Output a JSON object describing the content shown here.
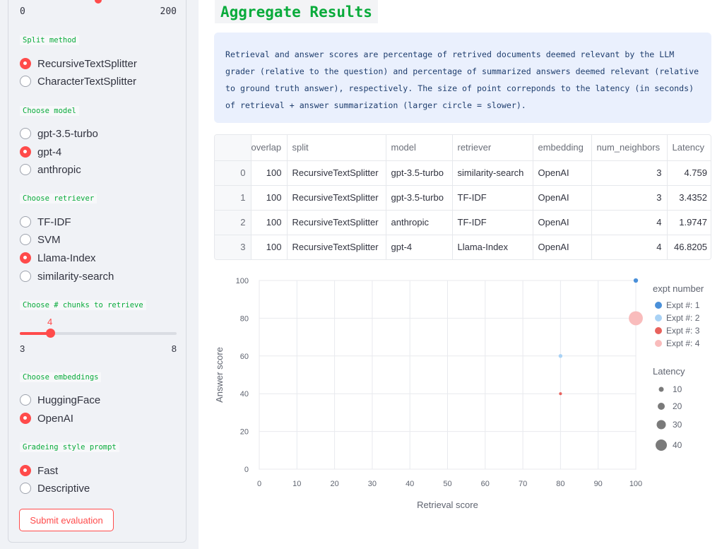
{
  "sidebar": {
    "top_range": {
      "min": "0",
      "max": "200"
    },
    "split_method": {
      "label": "Split method",
      "options": [
        {
          "label": "RecursiveTextSplitter",
          "selected": true
        },
        {
          "label": "CharacterTextSplitter",
          "selected": false
        }
      ]
    },
    "model": {
      "label": "Choose model",
      "options": [
        {
          "label": "gpt-3.5-turbo",
          "selected": false
        },
        {
          "label": "gpt-4",
          "selected": true
        },
        {
          "label": "anthropic",
          "selected": false
        }
      ]
    },
    "retriever": {
      "label": "Choose retriever",
      "options": [
        {
          "label": "TF-IDF",
          "selected": false
        },
        {
          "label": "SVM",
          "selected": false
        },
        {
          "label": "Llama-Index",
          "selected": true
        },
        {
          "label": "similarity-search",
          "selected": false
        }
      ]
    },
    "chunks": {
      "label": "Choose # chunks to retrieve",
      "value": "4",
      "min": "3",
      "max": "8"
    },
    "embeddings": {
      "label": "Choose embeddings",
      "options": [
        {
          "label": "HuggingFace",
          "selected": false
        },
        {
          "label": "OpenAI",
          "selected": true
        }
      ]
    },
    "grading": {
      "label": "Gradeing style prompt",
      "options": [
        {
          "label": "Fast",
          "selected": true
        },
        {
          "label": "Descriptive",
          "selected": false
        }
      ]
    },
    "submit_label": "Submit evaluation"
  },
  "main": {
    "title": "Aggregate Results",
    "info": "Retrieval and answer scores are percentage of retrived documents deemed relevant by the LLM grader (relative to the question) and percentage of summarized answers deemed relevant (relative to ground truth answer), respectively. The size of point correponds to the latency (in seconds) of retrieval + answer summarization (larger circle = slower).",
    "table": {
      "columns": [
        "",
        "overlap",
        "split",
        "model",
        "retriever",
        "embedding",
        "num_neighbors",
        "Latency"
      ],
      "rows": [
        [
          "0",
          "100",
          "RecursiveTextSplitter",
          "gpt-3.5-turbo",
          "similarity-search",
          "OpenAI",
          "3",
          "4.759"
        ],
        [
          "1",
          "100",
          "RecursiveTextSplitter",
          "gpt-3.5-turbo",
          "TF-IDF",
          "OpenAI",
          "3",
          "3.4352"
        ],
        [
          "2",
          "100",
          "RecursiveTextSplitter",
          "anthropic",
          "TF-IDF",
          "OpenAI",
          "4",
          "1.9747"
        ],
        [
          "3",
          "100",
          "RecursiveTextSplitter",
          "gpt-4",
          "Llama-Index",
          "OpenAI",
          "4",
          "46.8205"
        ]
      ]
    }
  },
  "chart_data": {
    "type": "scatter",
    "xlabel": "Retrieval score",
    "ylabel": "Answer score",
    "xlim": [
      0,
      100
    ],
    "ylim": [
      0,
      100
    ],
    "xticks": [
      0,
      10,
      20,
      30,
      40,
      50,
      60,
      70,
      80,
      90,
      100
    ],
    "yticks": [
      0,
      20,
      40,
      60,
      80,
      100
    ],
    "grid": true,
    "legend_position": "right",
    "color_legend_title": "expt number",
    "size_legend_title": "Latency",
    "series": [
      {
        "name": "Expt #: 1",
        "color": "#4a90d9",
        "x": 100,
        "y": 100,
        "latency": 4.759
      },
      {
        "name": "Expt #: 2",
        "color": "#a9d2f5",
        "x": 80,
        "y": 60,
        "latency": 3.4352
      },
      {
        "name": "Expt #: 3",
        "color": "#e8625d",
        "x": 80,
        "y": 40,
        "latency": 1.9747
      },
      {
        "name": "Expt #: 4",
        "color": "#f9bcbc",
        "x": 100,
        "y": 80,
        "latency": 46.8205
      }
    ],
    "size_legend": [
      10,
      20,
      30,
      40
    ]
  },
  "colors": {
    "accent": "#ff4b4b",
    "label_green": "#09ab3b",
    "info_bg": "#eaf0fd"
  }
}
